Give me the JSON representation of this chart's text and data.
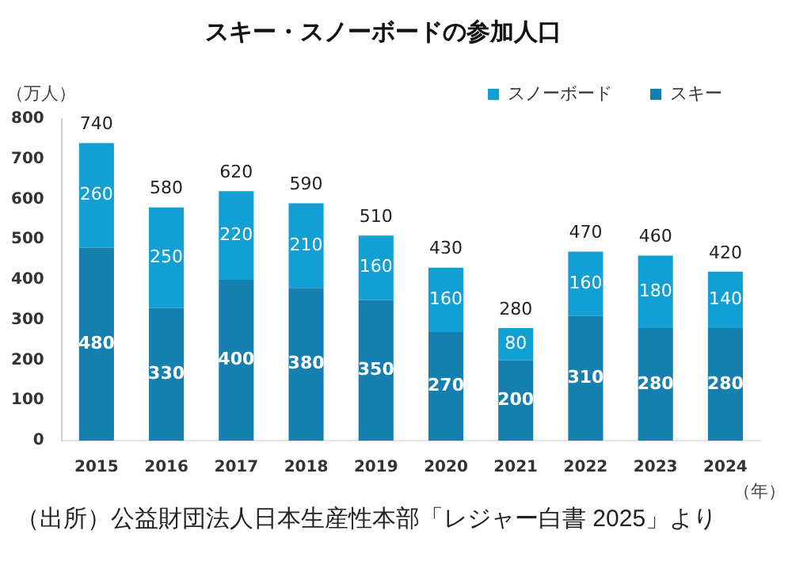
{
  "chart_data": {
    "type": "bar",
    "title": "スキー・スノーボードの参加人口",
    "ylabel": "（万人）",
    "xlabel": "（年）",
    "categories": [
      "2015",
      "2016",
      "2017",
      "2018",
      "2019",
      "2020",
      "2021",
      "2022",
      "2023",
      "2024"
    ],
    "series": [
      {
        "name": "スキー",
        "color": "#1580b0",
        "values": [
          480,
          330,
          400,
          380,
          350,
          270,
          200,
          310,
          280,
          280
        ]
      },
      {
        "name": "スノーボード",
        "color": "#12a0d4",
        "values": [
          260,
          250,
          220,
          210,
          160,
          160,
          80,
          160,
          180,
          140
        ]
      }
    ],
    "stacked": true,
    "data_labels": true,
    "totals": [
      "740",
      "580",
      "620",
      "590",
      "510",
      "430",
      "280",
      "470",
      "460",
      "420"
    ],
    "ylim": [
      0,
      800
    ],
    "yticks": [
      0,
      100,
      200,
      300,
      400,
      500,
      600,
      700,
      800
    ],
    "grid": false,
    "legend": "top right",
    "annotations": [
      "（出所）公益財団法人日本生産性本部「レジャー白書 2025」より"
    ]
  }
}
